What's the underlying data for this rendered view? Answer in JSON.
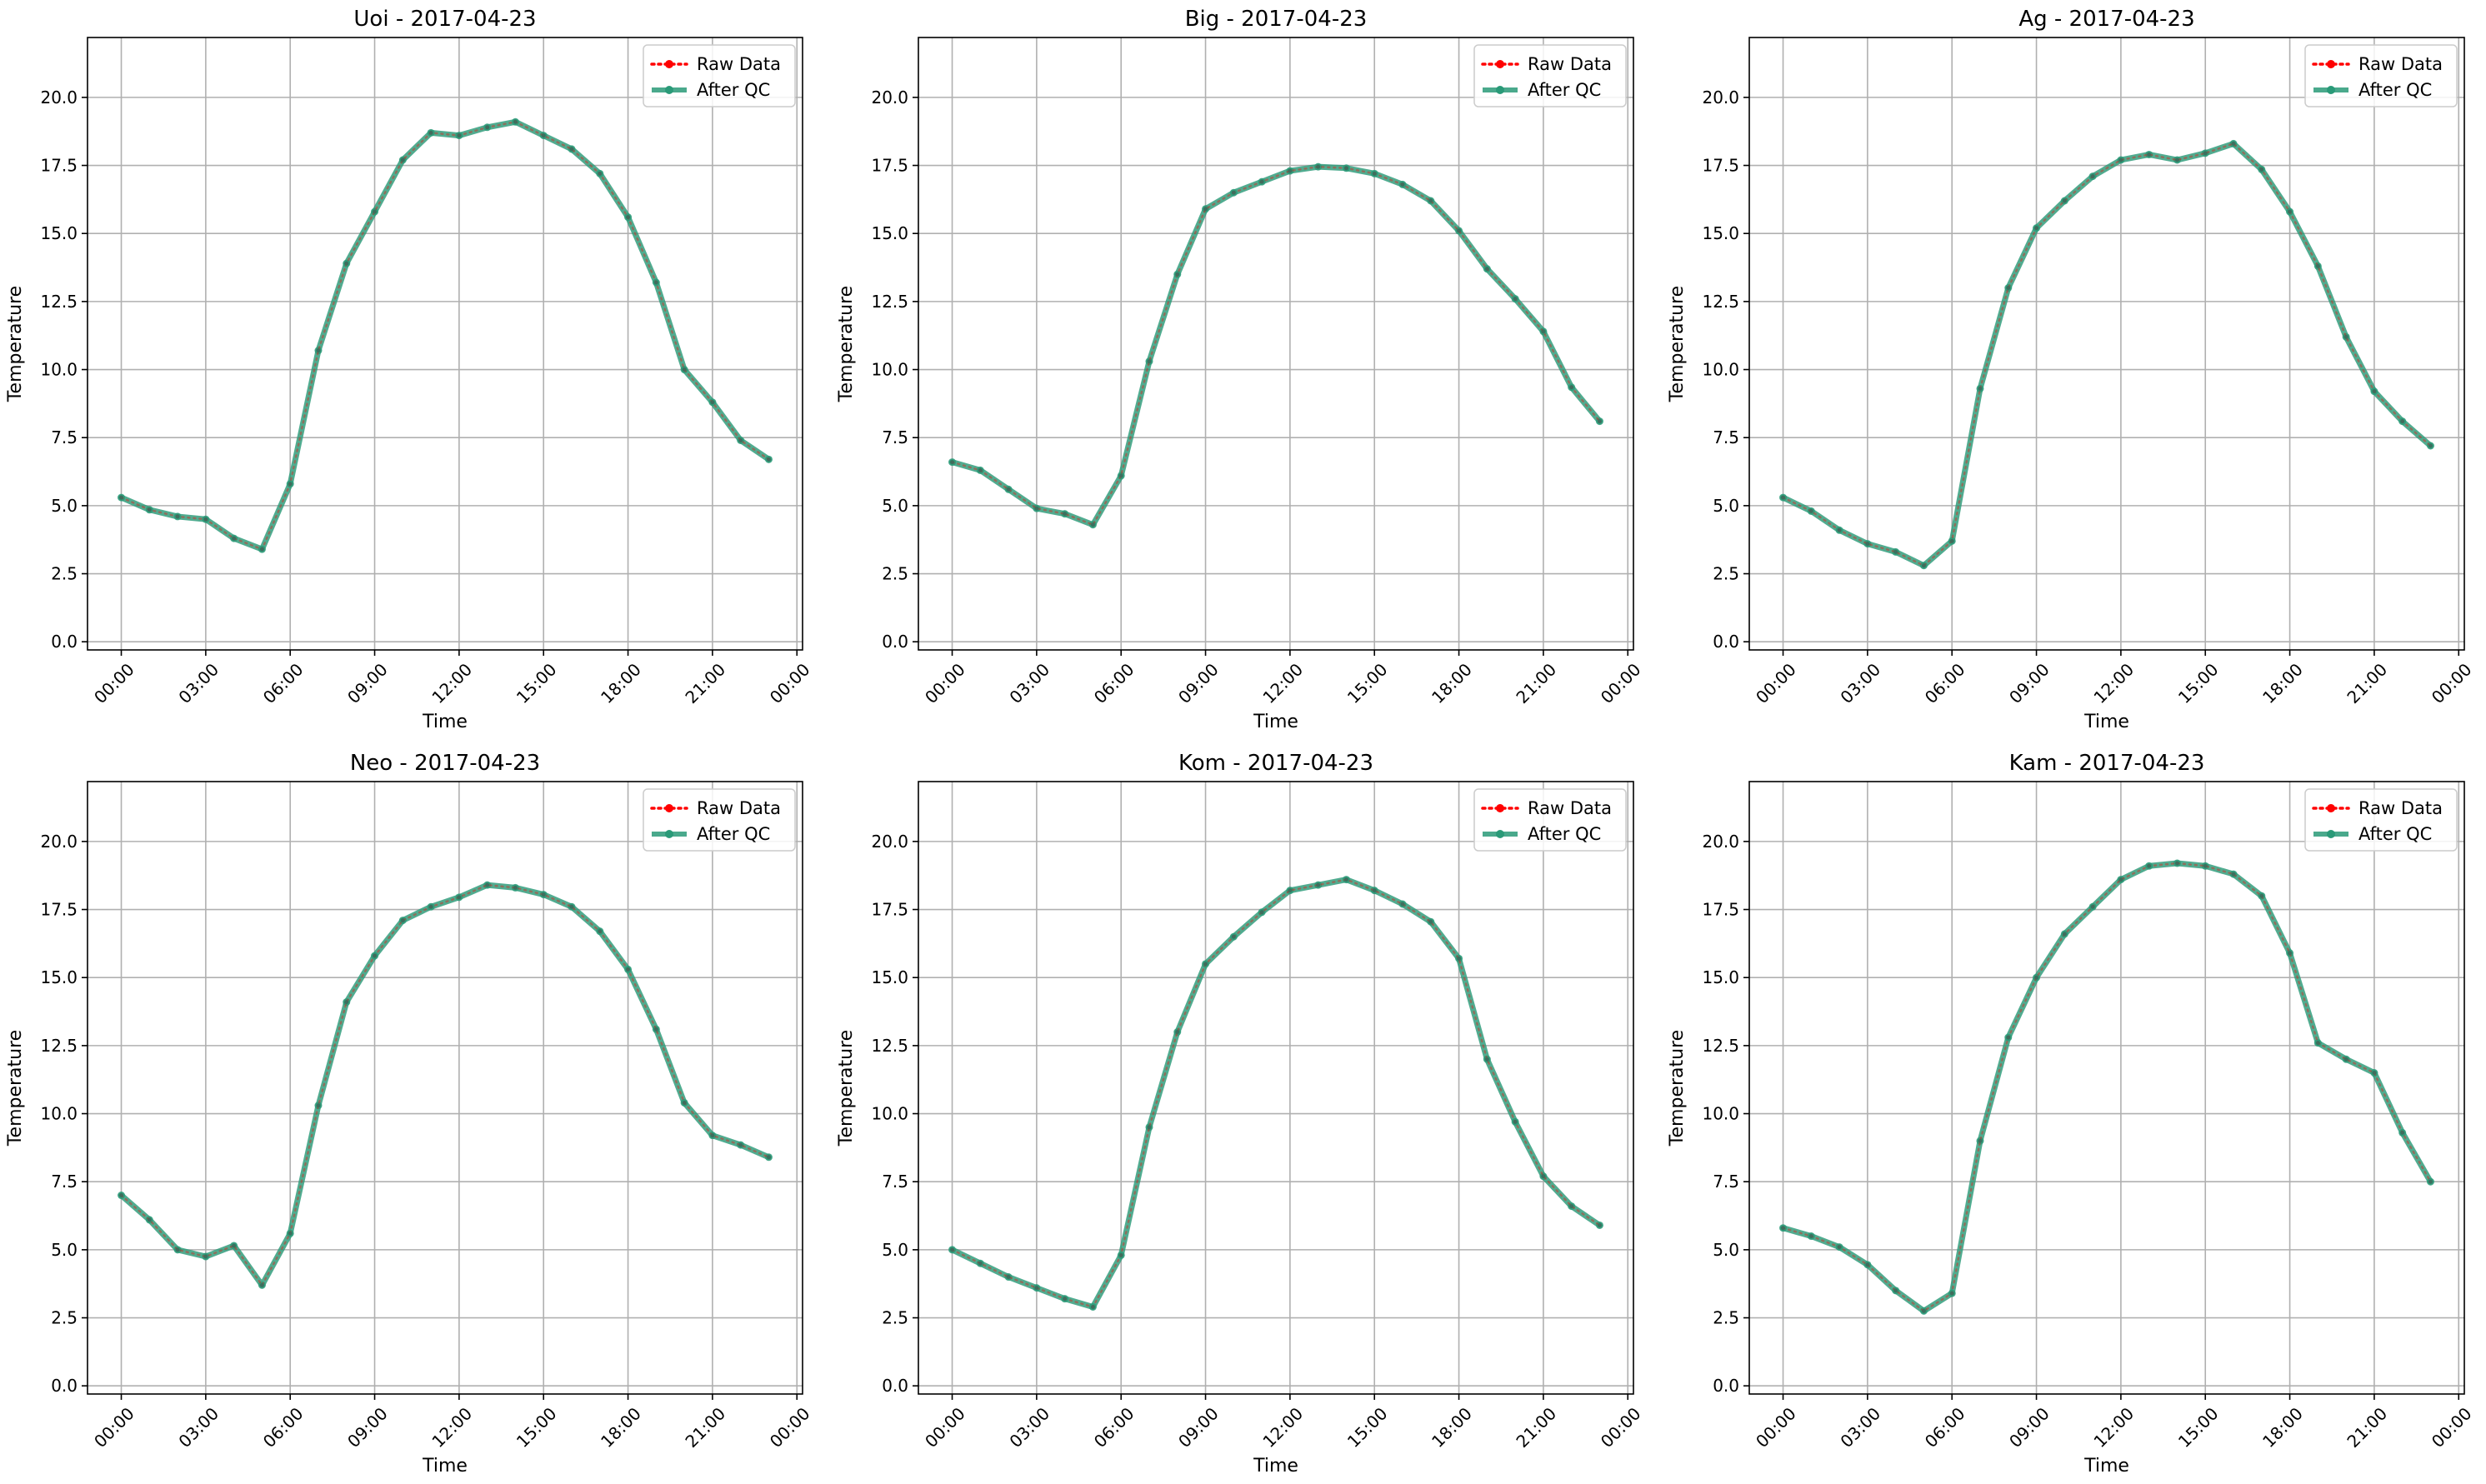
{
  "chart_data": [
    {
      "type": "line",
      "title": "Uoi - 2017-04-23",
      "xlabel": "Time",
      "ylabel": "Temperature",
      "x_ticks": [
        "00:00",
        "03:00",
        "06:00",
        "09:00",
        "12:00",
        "15:00",
        "18:00",
        "21:00",
        "00:00"
      ],
      "y_ticks": [
        "0.0",
        "2.5",
        "5.0",
        "7.5",
        "10.0",
        "12.5",
        "15.0",
        "17.5",
        "20.0"
      ],
      "xlim_hours": [
        -1.2,
        24.2
      ],
      "ylim": [
        -0.3,
        22.2
      ],
      "grid": true,
      "legend_position": "top-right",
      "series": [
        {
          "name": "Raw Data",
          "color": "#ff0000",
          "style": "dotted-marker",
          "values": [
            5.3,
            4.85,
            4.6,
            4.5,
            3.8,
            3.4,
            5.8,
            10.7,
            13.9,
            15.8,
            17.7,
            18.7,
            18.6,
            18.9,
            19.1,
            18.6,
            18.1,
            17.2,
            15.6,
            13.2,
            10.0,
            8.8,
            7.4,
            6.7
          ]
        },
        {
          "name": "After QC",
          "color": "#2a9a78",
          "style": "solid-marker",
          "values": [
            5.3,
            4.85,
            4.6,
            4.5,
            3.8,
            3.4,
            5.8,
            10.7,
            13.9,
            15.8,
            17.7,
            18.7,
            18.6,
            18.9,
            19.1,
            18.6,
            18.1,
            17.2,
            15.6,
            13.2,
            10.0,
            8.8,
            7.4,
            6.7
          ]
        }
      ]
    },
    {
      "type": "line",
      "title": "Big - 2017-04-23",
      "xlabel": "Time",
      "ylabel": "Temperature",
      "x_ticks": [
        "00:00",
        "03:00",
        "06:00",
        "09:00",
        "12:00",
        "15:00",
        "18:00",
        "21:00",
        "00:00"
      ],
      "y_ticks": [
        "0.0",
        "2.5",
        "5.0",
        "7.5",
        "10.0",
        "12.5",
        "15.0",
        "17.5",
        "20.0"
      ],
      "xlim_hours": [
        -1.2,
        24.2
      ],
      "ylim": [
        -0.3,
        22.2
      ],
      "grid": true,
      "legend_position": "top-right",
      "series": [
        {
          "name": "Raw Data",
          "color": "#ff0000",
          "style": "dotted-marker",
          "values": [
            6.6,
            6.3,
            5.6,
            4.9,
            4.7,
            4.3,
            6.1,
            10.3,
            13.5,
            15.9,
            16.5,
            16.9,
            17.3,
            17.45,
            17.4,
            17.2,
            16.8,
            16.2,
            15.1,
            13.7,
            12.6,
            11.4,
            9.35,
            8.1
          ]
        },
        {
          "name": "After QC",
          "color": "#2a9a78",
          "style": "solid-marker",
          "values": [
            6.6,
            6.3,
            5.6,
            4.9,
            4.7,
            4.3,
            6.1,
            10.3,
            13.5,
            15.9,
            16.5,
            16.9,
            17.3,
            17.45,
            17.4,
            17.2,
            16.8,
            16.2,
            15.1,
            13.7,
            12.6,
            11.4,
            9.35,
            8.1
          ]
        }
      ]
    },
    {
      "type": "line",
      "title": "Ag - 2017-04-23",
      "xlabel": "Time",
      "ylabel": "Temperature",
      "x_ticks": [
        "00:00",
        "03:00",
        "06:00",
        "09:00",
        "12:00",
        "15:00",
        "18:00",
        "21:00",
        "00:00"
      ],
      "y_ticks": [
        "0.0",
        "2.5",
        "5.0",
        "7.5",
        "10.0",
        "12.5",
        "15.0",
        "17.5",
        "20.0"
      ],
      "xlim_hours": [
        -1.2,
        24.2
      ],
      "ylim": [
        -0.3,
        22.2
      ],
      "grid": true,
      "legend_position": "top-right",
      "series": [
        {
          "name": "Raw Data",
          "color": "#ff0000",
          "style": "dotted-marker",
          "values": [
            5.3,
            4.8,
            4.1,
            3.6,
            3.3,
            2.8,
            3.7,
            9.3,
            13.0,
            15.2,
            16.2,
            17.1,
            17.7,
            17.9,
            17.7,
            17.95,
            18.3,
            17.35,
            15.8,
            13.8,
            11.2,
            9.2,
            8.1,
            7.2
          ]
        },
        {
          "name": "After QC",
          "color": "#2a9a78",
          "style": "solid-marker",
          "values": [
            5.3,
            4.8,
            4.1,
            3.6,
            3.3,
            2.8,
            3.7,
            9.3,
            13.0,
            15.2,
            16.2,
            17.1,
            17.7,
            17.9,
            17.7,
            17.95,
            18.3,
            17.35,
            15.8,
            13.8,
            11.2,
            9.2,
            8.1,
            7.2
          ]
        }
      ]
    },
    {
      "type": "line",
      "title": "Neo - 2017-04-23",
      "xlabel": "Time",
      "ylabel": "Temperature",
      "x_ticks": [
        "00:00",
        "03:00",
        "06:00",
        "09:00",
        "12:00",
        "15:00",
        "18:00",
        "21:00",
        "00:00"
      ],
      "y_ticks": [
        "0.0",
        "2.5",
        "5.0",
        "7.5",
        "10.0",
        "12.5",
        "15.0",
        "17.5",
        "20.0"
      ],
      "xlim_hours": [
        -1.2,
        24.2
      ],
      "ylim": [
        -0.3,
        22.2
      ],
      "grid": true,
      "legend_position": "top-right",
      "series": [
        {
          "name": "Raw Data",
          "color": "#ff0000",
          "style": "dotted-marker",
          "values": [
            7.0,
            6.1,
            5.0,
            4.75,
            5.15,
            3.7,
            5.6,
            10.3,
            14.1,
            15.8,
            17.1,
            17.6,
            17.95,
            18.4,
            18.3,
            18.05,
            17.6,
            16.7,
            15.3,
            13.1,
            10.4,
            9.2,
            8.85,
            8.4
          ]
        },
        {
          "name": "After QC",
          "color": "#2a9a78",
          "style": "solid-marker",
          "values": [
            7.0,
            6.1,
            5.0,
            4.75,
            5.15,
            3.7,
            5.6,
            10.3,
            14.1,
            15.8,
            17.1,
            17.6,
            17.95,
            18.4,
            18.3,
            18.05,
            17.6,
            16.7,
            15.3,
            13.1,
            10.4,
            9.2,
            8.85,
            8.4
          ]
        }
      ]
    },
    {
      "type": "line",
      "title": "Kom - 2017-04-23",
      "xlabel": "Time",
      "ylabel": "Temperature",
      "x_ticks": [
        "00:00",
        "03:00",
        "06:00",
        "09:00",
        "12:00",
        "15:00",
        "18:00",
        "21:00",
        "00:00"
      ],
      "y_ticks": [
        "0.0",
        "2.5",
        "5.0",
        "7.5",
        "10.0",
        "12.5",
        "15.0",
        "17.5",
        "20.0"
      ],
      "xlim_hours": [
        -1.2,
        24.2
      ],
      "ylim": [
        -0.3,
        22.2
      ],
      "grid": true,
      "legend_position": "top-right",
      "series": [
        {
          "name": "Raw Data",
          "color": "#ff0000",
          "style": "dotted-marker",
          "values": [
            5.0,
            4.5,
            4.0,
            3.6,
            3.2,
            2.9,
            4.8,
            9.5,
            13.0,
            15.5,
            16.5,
            17.4,
            18.2,
            18.4,
            18.6,
            18.2,
            17.7,
            17.05,
            15.7,
            12.0,
            9.7,
            7.7,
            6.6,
            5.9
          ]
        },
        {
          "name": "After QC",
          "color": "#2a9a78",
          "style": "solid-marker",
          "values": [
            5.0,
            4.5,
            4.0,
            3.6,
            3.2,
            2.9,
            4.8,
            9.5,
            13.0,
            15.5,
            16.5,
            17.4,
            18.2,
            18.4,
            18.6,
            18.2,
            17.7,
            17.05,
            15.7,
            12.0,
            9.7,
            7.7,
            6.6,
            5.9
          ]
        }
      ]
    },
    {
      "type": "line",
      "title": "Kam - 2017-04-23",
      "xlabel": "Time",
      "ylabel": "Temperature",
      "x_ticks": [
        "00:00",
        "03:00",
        "06:00",
        "09:00",
        "12:00",
        "15:00",
        "18:00",
        "21:00",
        "00:00"
      ],
      "y_ticks": [
        "0.0",
        "2.5",
        "5.0",
        "7.5",
        "10.0",
        "12.5",
        "15.0",
        "17.5",
        "20.0"
      ],
      "xlim_hours": [
        -1.2,
        24.2
      ],
      "ylim": [
        -0.3,
        22.2
      ],
      "grid": true,
      "legend_position": "top-right",
      "series": [
        {
          "name": "Raw Data",
          "color": "#ff0000",
          "style": "dotted-marker",
          "values": [
            5.8,
            5.5,
            5.1,
            4.45,
            3.5,
            2.75,
            3.4,
            9.0,
            12.8,
            15.0,
            16.6,
            17.6,
            18.6,
            19.1,
            19.2,
            19.1,
            18.8,
            18.0,
            15.9,
            12.6,
            12.0,
            11.5,
            9.3,
            7.5
          ]
        },
        {
          "name": "After QC",
          "color": "#2a9a78",
          "style": "solid-marker",
          "values": [
            5.8,
            5.5,
            5.1,
            4.45,
            3.5,
            2.75,
            3.4,
            9.0,
            12.8,
            15.0,
            16.6,
            17.6,
            18.6,
            19.1,
            19.2,
            19.1,
            18.8,
            18.0,
            15.9,
            12.6,
            12.0,
            11.5,
            9.3,
            7.5
          ]
        }
      ]
    }
  ]
}
